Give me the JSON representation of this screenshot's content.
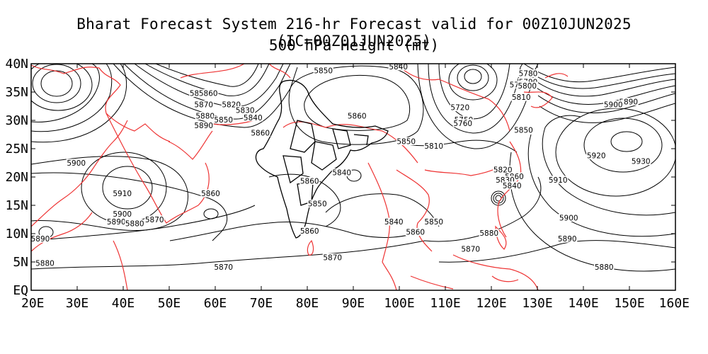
{
  "title": "Bharat Forecast System 216-hr Forecast valid for 00Z10JUN2025 (IC=00Z01JUN2025)",
  "subtitle": "500 hPa Height (mt)",
  "map": {
    "projection": "lat-lon",
    "lon_range": [
      20,
      160
    ],
    "lat_range": [
      0,
      40
    ],
    "x_tick_labels": [
      "20E",
      "30E",
      "40E",
      "50E",
      "60E",
      "70E",
      "80E",
      "90E",
      "100E",
      "110E",
      "120E",
      "130E",
      "140E",
      "150E",
      "160E"
    ],
    "y_tick_labels": [
      "EQ",
      "5N",
      "10N",
      "15N",
      "20N",
      "25N",
      "30N",
      "35N",
      "40N"
    ],
    "contour_color": "#000000",
    "coastline_color": "#ee3333",
    "india_boundary_color": "#000000",
    "contour_labels": [
      {
        "text": "5850",
        "lon": 56.5,
        "lat": 34.5
      },
      {
        "text": "5860",
        "lon": 58.5,
        "lat": 34.5
      },
      {
        "text": "5870",
        "lon": 57.5,
        "lat": 32.5
      },
      {
        "text": "5880",
        "lon": 57.8,
        "lat": 30.5
      },
      {
        "text": "5890",
        "lon": 57.5,
        "lat": 28.8
      },
      {
        "text": "5820",
        "lon": 63.5,
        "lat": 32.5
      },
      {
        "text": "5830",
        "lon": 66.5,
        "lat": 31.5
      },
      {
        "text": "5840",
        "lon": 68.2,
        "lat": 30.2
      },
      {
        "text": "5850",
        "lon": 61.8,
        "lat": 29.8
      },
      {
        "text": "5860",
        "lon": 69.8,
        "lat": 27.5
      },
      {
        "text": "5850",
        "lon": 83.5,
        "lat": 38.5
      },
      {
        "text": "5840",
        "lon": 99.8,
        "lat": 39.2
      },
      {
        "text": "5860",
        "lon": 90.8,
        "lat": 30.5
      },
      {
        "text": "5850",
        "lon": 101.5,
        "lat": 26.0
      },
      {
        "text": "5810",
        "lon": 107.5,
        "lat": 25.2
      },
      {
        "text": "5840",
        "lon": 87.5,
        "lat": 20.5
      },
      {
        "text": "5860",
        "lon": 80.5,
        "lat": 19.0
      },
      {
        "text": "5850",
        "lon": 82.2,
        "lat": 15.0
      },
      {
        "text": "5860",
        "lon": 80.5,
        "lat": 10.2
      },
      {
        "text": "5870",
        "lon": 85.5,
        "lat": 5.5
      },
      {
        "text": "5840",
        "lon": 98.8,
        "lat": 11.8
      },
      {
        "text": "5850",
        "lon": 107.5,
        "lat": 11.8
      },
      {
        "text": "5860",
        "lon": 103.5,
        "lat": 10.0
      },
      {
        "text": "5870",
        "lon": 115.5,
        "lat": 7.0
      },
      {
        "text": "5880",
        "lon": 119.5,
        "lat": 9.8
      },
      {
        "text": "5720",
        "lon": 113.2,
        "lat": 32.0
      },
      {
        "text": "5750",
        "lon": 114.0,
        "lat": 29.8
      },
      {
        "text": "5760",
        "lon": 113.8,
        "lat": 29.2
      },
      {
        "text": "5780",
        "lon": 128.0,
        "lat": 38.0
      },
      {
        "text": "5790",
        "lon": 128.0,
        "lat": 36.5
      },
      {
        "text": "5770",
        "lon": 126.0,
        "lat": 36.0
      },
      {
        "text": "5800",
        "lon": 127.8,
        "lat": 35.8
      },
      {
        "text": "5810",
        "lon": 126.5,
        "lat": 33.8
      },
      {
        "text": "5890",
        "lon": 149.8,
        "lat": 33.0
      },
      {
        "text": "5900",
        "lon": 146.5,
        "lat": 32.5
      },
      {
        "text": "5850",
        "lon": 127.0,
        "lat": 28.0
      },
      {
        "text": "5920",
        "lon": 142.8,
        "lat": 23.5
      },
      {
        "text": "5930",
        "lon": 152.5,
        "lat": 22.5
      },
      {
        "text": "5910",
        "lon": 134.5,
        "lat": 19.2
      },
      {
        "text": "5820",
        "lon": 122.5,
        "lat": 21.0
      },
      {
        "text": "5860",
        "lon": 125.0,
        "lat": 19.8
      },
      {
        "text": "5830",
        "lon": 123.0,
        "lat": 19.2
      },
      {
        "text": "5840",
        "lon": 124.5,
        "lat": 18.2
      },
      {
        "text": "5900",
        "lon": 136.8,
        "lat": 12.5
      },
      {
        "text": "5890",
        "lon": 136.5,
        "lat": 8.8
      },
      {
        "text": "5880",
        "lon": 144.5,
        "lat": 3.8
      },
      {
        "text": "5900",
        "lon": 29.8,
        "lat": 22.2
      },
      {
        "text": "5910",
        "lon": 39.8,
        "lat": 16.8
      },
      {
        "text": "5900",
        "lon": 39.8,
        "lat": 13.2
      },
      {
        "text": "5890",
        "lon": 38.5,
        "lat": 11.8
      },
      {
        "text": "5880",
        "lon": 42.5,
        "lat": 11.5
      },
      {
        "text": "5870",
        "lon": 46.8,
        "lat": 12.2
      },
      {
        "text": "5860",
        "lon": 59.0,
        "lat": 16.8
      },
      {
        "text": "5890",
        "lon": 22.0,
        "lat": 8.8
      },
      {
        "text": "5880",
        "lon": 23.0,
        "lat": 4.5
      },
      {
        "text": "5870",
        "lon": 61.8,
        "lat": 3.8
      }
    ]
  }
}
